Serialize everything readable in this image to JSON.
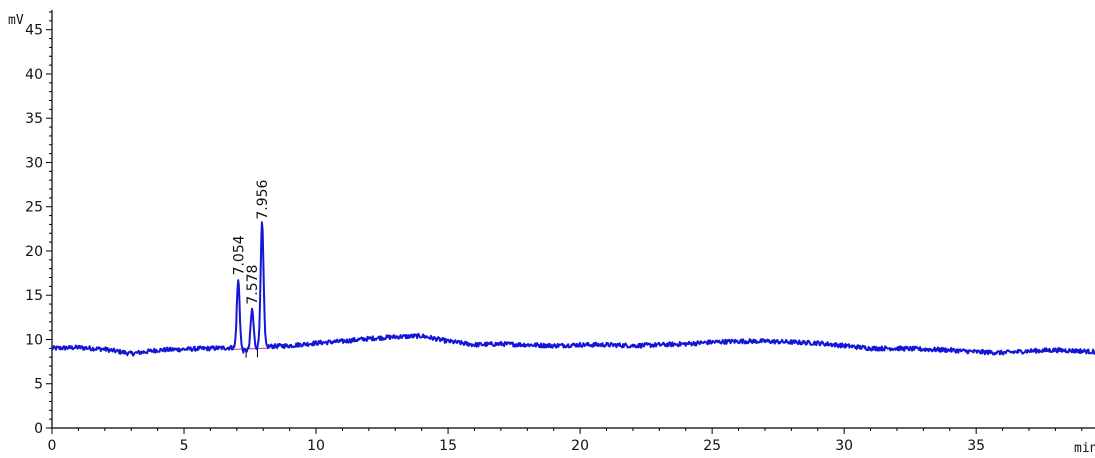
{
  "chart_data": {
    "type": "line",
    "ylabel": "mV",
    "xlabel": "min",
    "xlim": [
      0,
      39.5
    ],
    "ylim": [
      0,
      47
    ],
    "x_ticks": [
      0,
      5,
      10,
      15,
      20,
      25,
      30,
      35
    ],
    "y_ticks": [
      0,
      5,
      10,
      15,
      20,
      25,
      30,
      35,
      40,
      45
    ],
    "grid": false,
    "colors": {
      "trace": "#1515d6",
      "baseline": "#c030c0",
      "axis": "#000000"
    },
    "peaks": [
      {
        "time": 7.054,
        "height": 16.9,
        "label": "7.054"
      },
      {
        "time": 7.578,
        "height": 13.6,
        "label": "7.578"
      },
      {
        "time": 7.956,
        "height": 23.2,
        "label": "7.956"
      }
    ],
    "baseline_profile": {
      "x": [
        0,
        1,
        2,
        3,
        4,
        5,
        6,
        7,
        8,
        9,
        10,
        11,
        12,
        13,
        14,
        15,
        16,
        17,
        18,
        19,
        20,
        21,
        22,
        23,
        24,
        25,
        26,
        27,
        28,
        29,
        30,
        31,
        32,
        33,
        34,
        35,
        36,
        37,
        38,
        39,
        39.5
      ],
      "y": [
        9.0,
        9.1,
        8.9,
        8.4,
        8.8,
        8.9,
        9.0,
        9.1,
        9.2,
        9.3,
        9.6,
        9.8,
        10.1,
        10.3,
        10.4,
        9.8,
        9.4,
        9.5,
        9.4,
        9.3,
        9.4,
        9.4,
        9.3,
        9.4,
        9.5,
        9.7,
        9.8,
        9.8,
        9.7,
        9.6,
        9.3,
        9.0,
        9.0,
        8.9,
        8.8,
        8.6,
        8.5,
        8.7,
        8.8,
        8.7,
        8.6
      ]
    }
  }
}
